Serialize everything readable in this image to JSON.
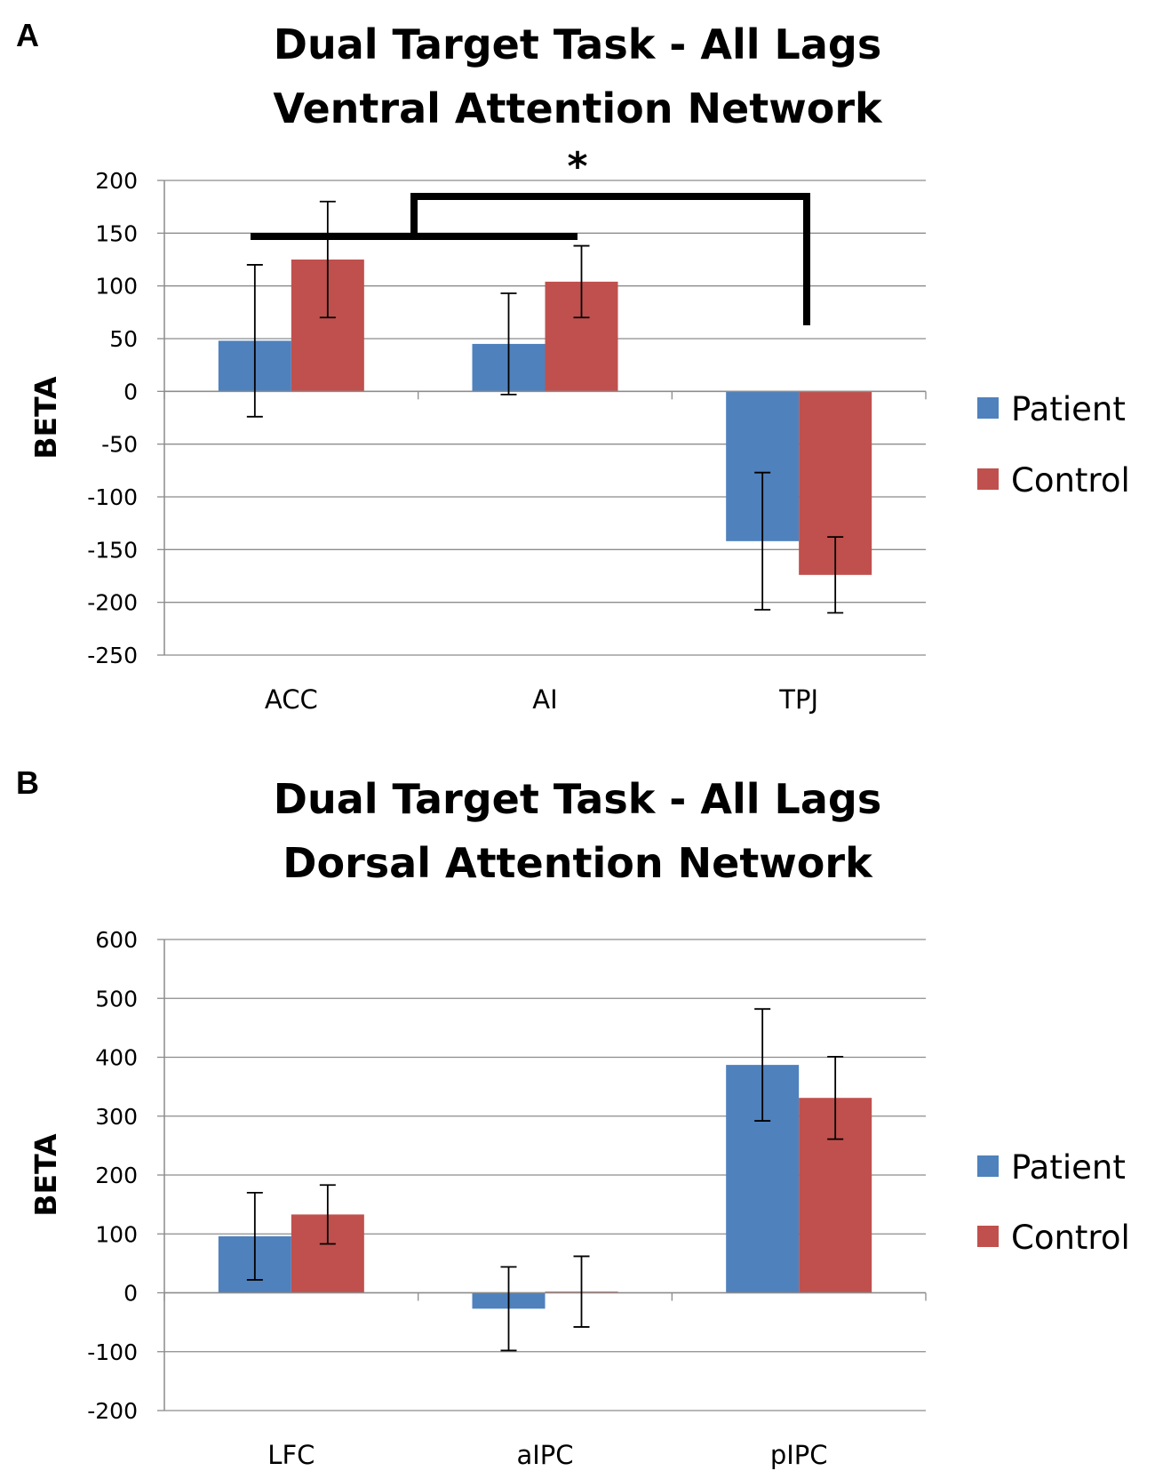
{
  "chart_data": [
    {
      "type": "bar",
      "panel_label": "A",
      "title_line1": "Dual Target Task - All Lags",
      "title_line2": "Ventral Attention Network",
      "xlabel": "",
      "ylabel": "BETA",
      "ylim": [
        -250,
        200
      ],
      "ytick_step": 50,
      "grid": true,
      "legend_position": "right",
      "categories": [
        "ACC",
        "AI",
        "TPJ"
      ],
      "series": [
        {
          "name": "Patient",
          "color": "#4F81BD",
          "values": [
            48,
            45,
            -142
          ],
          "errors": [
            72,
            48,
            65
          ]
        },
        {
          "name": "Control",
          "color": "#C0504D",
          "values": [
            125,
            104,
            -174
          ],
          "errors": [
            55,
            34,
            36
          ]
        }
      ],
      "annotation": {
        "text": "*",
        "description": "significance bracket between ACC/AI and TPJ"
      }
    },
    {
      "type": "bar",
      "panel_label": "B",
      "title_line1": "Dual Target Task - All Lags",
      "title_line2": "Dorsal Attention Network",
      "xlabel": "",
      "ylabel": "BETA",
      "ylim": [
        -200,
        600
      ],
      "ytick_step": 100,
      "grid": true,
      "legend_position": "right",
      "categories": [
        "LFC",
        "aIPC",
        "pIPC"
      ],
      "series": [
        {
          "name": "Patient",
          "color": "#4F81BD",
          "values": [
            96,
            -27,
            387
          ],
          "errors": [
            74,
            71,
            95
          ]
        },
        {
          "name": "Control",
          "color": "#C0504D",
          "values": [
            133,
            2,
            331
          ],
          "errors": [
            50,
            60,
            70
          ]
        }
      ]
    }
  ]
}
